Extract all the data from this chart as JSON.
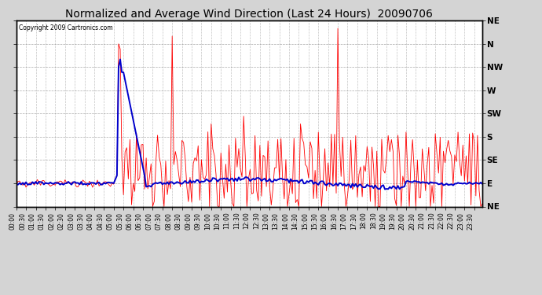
{
  "title": "Normalized and Average Wind Direction (Last 24 Hours)  20090706",
  "copyright": "Copyright 2009 Cartronics.com",
  "bg_color": "#d4d4d4",
  "plot_bg_color": "#ffffff",
  "ytick_labels": [
    "NE",
    "N",
    "NW",
    "W",
    "SW",
    "S",
    "SE",
    "E",
    "NE"
  ],
  "ytick_values": [
    0,
    45,
    90,
    135,
    180,
    225,
    270,
    315,
    360
  ],
  "ylim": [
    360,
    0
  ],
  "grid_color": "#888888",
  "red_color": "#ff0000",
  "blue_color": "#0000cc",
  "title_fontsize": 10,
  "copyright_fontsize": 6
}
